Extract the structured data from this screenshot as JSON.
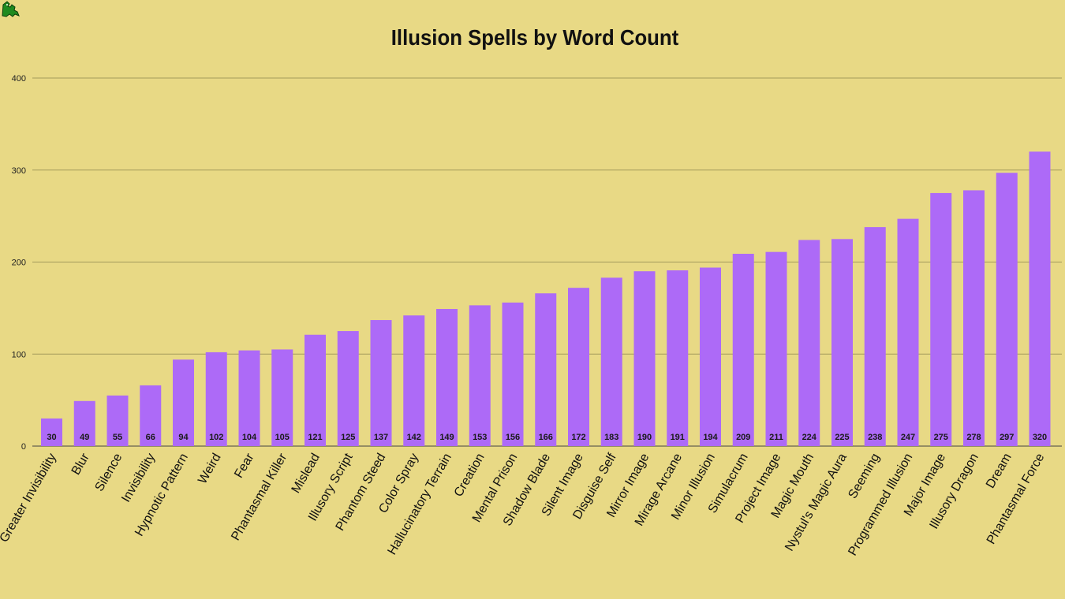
{
  "chart_data": {
    "type": "bar",
    "title": "Illusion Spells by Word Count",
    "xlabel": "",
    "ylabel": "",
    "ylim": [
      0,
      400
    ],
    "yticks": [
      0,
      100,
      200,
      300,
      400
    ],
    "grid": true,
    "legend": "none",
    "bar_color": "#ad6af7",
    "categories": [
      "Greater Invisibility",
      "Blur",
      "Silence",
      "Invisibility",
      "Hypnotic Pattern",
      "Weird",
      "Fear",
      "Phantasmal Killer",
      "Mislead",
      "Illusory Script",
      "Phantom Steed",
      "Color Spray",
      "Hallucinatory Terrain",
      "Creation",
      "Mental Prison",
      "Shadow Blade",
      "Silent Image",
      "Disguise Self",
      "Mirror Image",
      "Mirage Arcane",
      "Minor Illusion",
      "Simulacrum",
      "Project Image",
      "Magic Mouth",
      "Nystul's Magic Aura",
      "Seeming",
      "Programmed Illusion",
      "Major Image",
      "Illusory Dragon",
      "Dream",
      "Phantasmal Force"
    ],
    "values": [
      30,
      49,
      55,
      66,
      94,
      102,
      104,
      105,
      121,
      125,
      137,
      142,
      149,
      153,
      156,
      166,
      172,
      183,
      190,
      191,
      194,
      209,
      211,
      224,
      225,
      238,
      247,
      275,
      278,
      297,
      320
    ]
  },
  "colors": {
    "background": "#e8d985",
    "gridline": "#a39a5c",
    "bar": "#ad6af7"
  },
  "logo_icon": "dragon-icon"
}
